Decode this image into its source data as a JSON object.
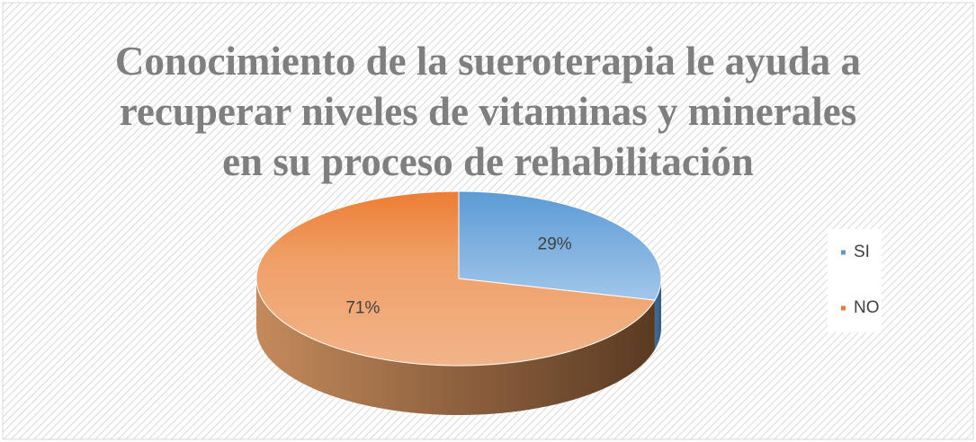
{
  "chart_data": {
    "type": "pie",
    "title": "Conocimiento de la sueroterapia le ayuda a recuperar  niveles de vitaminas y minerales en su proceso de rehabilitación",
    "categories": [
      "SI",
      "NO"
    ],
    "values": [
      29,
      71
    ],
    "value_labels": [
      "29%",
      "71%"
    ],
    "colors": [
      "#5b9bd5",
      "#ed7d31"
    ],
    "legend": "right"
  }
}
